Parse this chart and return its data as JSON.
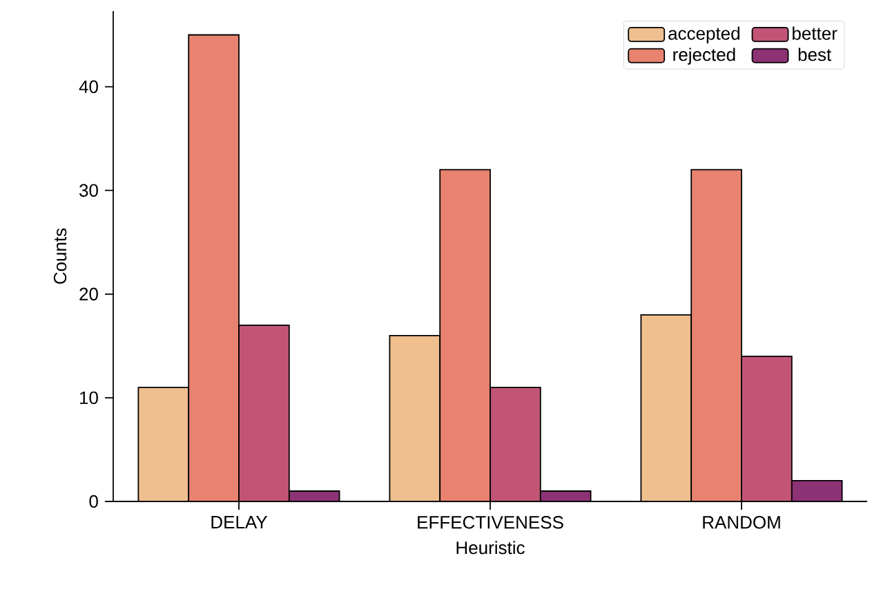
{
  "chart_data": {
    "type": "bar",
    "xlabel": "Heuristic",
    "ylabel": "Counts",
    "categories": [
      "DELAY",
      "EFFECTIVENESS",
      "RANDOM"
    ],
    "series": [
      {
        "name": "accepted",
        "color": "#f0bf90",
        "values": [
          11,
          16,
          18
        ]
      },
      {
        "name": "rejected",
        "color": "#e8836f",
        "values": [
          45,
          32,
          32
        ]
      },
      {
        "name": "better",
        "color": "#c25576",
        "values": [
          17,
          11,
          14
        ]
      },
      {
        "name": "best",
        "color": "#8c3275",
        "values": [
          1,
          1,
          2
        ]
      }
    ],
    "ylim": [
      0,
      47.3
    ],
    "yticks": [
      0,
      10,
      20,
      30,
      40
    ],
    "grid": false,
    "legend": "top right"
  }
}
